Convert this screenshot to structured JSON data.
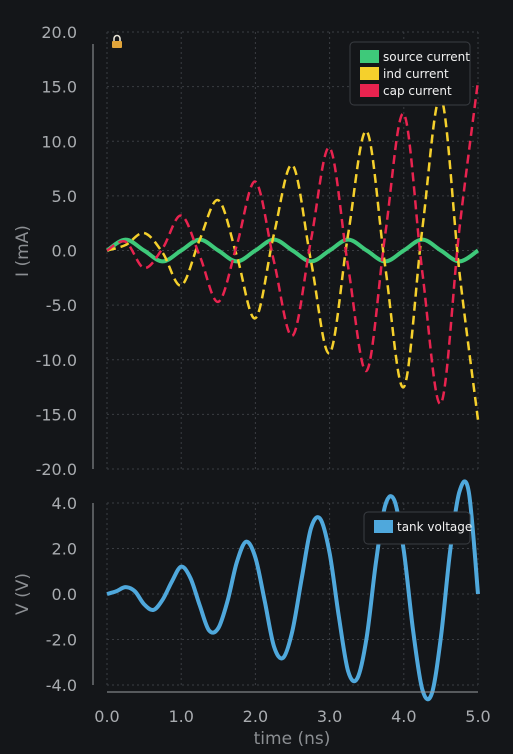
{
  "chart_data": [
    {
      "type": "line",
      "ylabel": "I (mA)",
      "xlabel": "",
      "xlim": [
        0,
        5
      ],
      "ylim": [
        -20,
        20
      ],
      "grid": true,
      "legend_position": "top-right",
      "lock_icon": "lock-icon",
      "x_ticks": [
        "0.0",
        "1.0",
        "2.0",
        "3.0",
        "4.0",
        "5.0"
      ],
      "y_ticks": [
        "20.0",
        "15.0",
        "10.0",
        "5.0",
        "0.0",
        "-5.0",
        "-10.0",
        "-15.0",
        "-20.0"
      ],
      "y_tick_values": [
        20,
        15,
        10,
        5,
        0,
        -5,
        -10,
        -15,
        -20
      ],
      "series": [
        {
          "name": "source current",
          "color": "#3ec97a",
          "style": "solid",
          "x": [
            0,
            0.25,
            0.5,
            0.75,
            1.0,
            1.25,
            1.5,
            1.75,
            2.0,
            2.25,
            2.5,
            2.75,
            3.0,
            3.25,
            3.5,
            3.75,
            4.0,
            4.25,
            4.5,
            4.75,
            5.0
          ],
          "y": [
            0,
            1.0,
            0,
            -1.0,
            0,
            1.0,
            0,
            -1.0,
            0,
            1.0,
            0,
            -1.0,
            0,
            1.0,
            0,
            -1.0,
            0,
            1.0,
            0,
            -1.0,
            0
          ]
        },
        {
          "name": "ind current",
          "color": "#f5d02c",
          "style": "dashed",
          "x": [
            0,
            0.25,
            0.5,
            0.75,
            1.0,
            1.25,
            1.5,
            1.75,
            2.0,
            2.25,
            2.5,
            2.75,
            3.0,
            3.25,
            3.5,
            3.75,
            4.0,
            4.25,
            4.5,
            4.75,
            5.0
          ],
          "y": [
            0,
            0.5,
            1.6,
            -0.2,
            -3.2,
            1.0,
            4.6,
            -0.5,
            -6.2,
            1.5,
            7.8,
            -1.0,
            -9.4,
            1.5,
            10.9,
            -1.5,
            -12.5,
            2.0,
            14.0,
            -2.0,
            -15.5
          ]
        },
        {
          "name": "cap current",
          "color": "#e8234f",
          "style": "dashed",
          "x": [
            0,
            0.25,
            0.5,
            0.75,
            1.0,
            1.25,
            1.5,
            1.75,
            2.0,
            2.25,
            2.5,
            2.75,
            3.0,
            3.25,
            3.5,
            3.75,
            4.0,
            4.25,
            4.5,
            4.75,
            5.0
          ],
          "y": [
            0,
            0.8,
            -1.6,
            0.2,
            3.2,
            -0.5,
            -4.7,
            0.5,
            6.3,
            -1.0,
            -7.8,
            1.0,
            9.4,
            -1.5,
            -11.0,
            1.5,
            12.5,
            -2.0,
            -14.0,
            2.0,
            15.5
          ]
        }
      ]
    },
    {
      "type": "line",
      "ylabel": "V (V)",
      "xlabel": "time (ns)",
      "xlim": [
        0,
        5
      ],
      "ylim": [
        -4,
        4
      ],
      "grid": true,
      "legend_position": "top-right",
      "x_ticks": [
        "0.0",
        "1.0",
        "2.0",
        "3.0",
        "4.0",
        "5.0"
      ],
      "y_ticks": [
        "4.0",
        "2.0",
        "0.0",
        "-2.0",
        "-4.0"
      ],
      "y_tick_values": [
        4,
        2,
        0,
        -2,
        -4
      ],
      "series": [
        {
          "name": "tank voltage",
          "color": "#4fa8dc",
          "style": "solid",
          "x": [
            0,
            0.125,
            0.25,
            0.375,
            0.5,
            0.625,
            0.75,
            0.875,
            1.0,
            1.125,
            1.25,
            1.375,
            1.5,
            1.625,
            1.75,
            1.875,
            2.0,
            2.125,
            2.25,
            2.375,
            2.5,
            2.625,
            2.75,
            2.875,
            3.0,
            3.125,
            3.25,
            3.375,
            3.5,
            3.625,
            3.75,
            3.875,
            4.0,
            4.125,
            4.25,
            4.375,
            4.5,
            4.625,
            4.75,
            4.875,
            5.0
          ],
          "y": [
            0,
            0.12,
            0.3,
            0.12,
            -0.45,
            -0.7,
            -0.25,
            0.55,
            1.2,
            0.7,
            -0.5,
            -1.6,
            -1.5,
            -0.3,
            1.4,
            2.3,
            1.6,
            -0.3,
            -2.3,
            -2.8,
            -1.6,
            0.7,
            2.9,
            3.3,
            1.8,
            -1.0,
            -3.4,
            -3.7,
            -1.9,
            1.4,
            3.9,
            4.1,
            1.9,
            -1.6,
            -4.2,
            -4.4,
            -1.9,
            1.9,
            4.5,
            4.5,
            0
          ]
        }
      ]
    }
  ]
}
